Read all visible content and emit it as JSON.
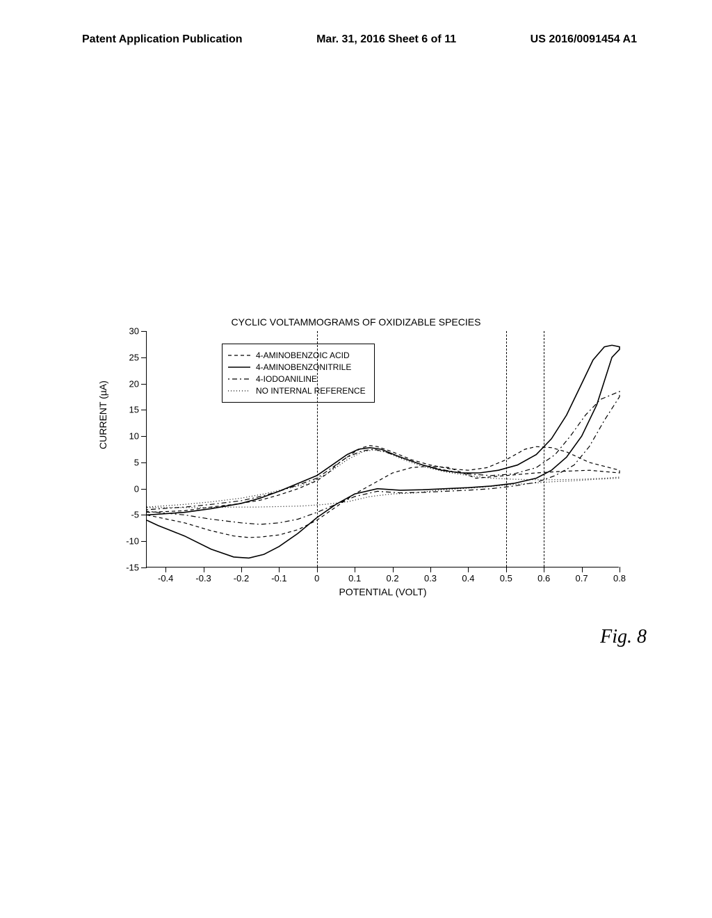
{
  "header": {
    "left": "Patent Application Publication",
    "center": "Mar. 31, 2016  Sheet 6 of 11",
    "right": "US 2016/0091454 A1"
  },
  "chart": {
    "type": "line",
    "title": "CYCLIC VOLTAMMOGRAMS OF OXIDIZABLE SPECIES",
    "xlabel": "POTENTIAL (VOLT)",
    "ylabel": "CURRENT (µA)",
    "xlim": [
      -0.45,
      0.8
    ],
    "ylim": [
      -15,
      30
    ],
    "xticks": [
      -0.4,
      -0.3,
      -0.2,
      -0.1,
      0,
      0.1,
      0.2,
      0.3,
      0.4,
      0.5,
      0.6,
      0.7,
      0.8
    ],
    "yticks": [
      -15,
      -10,
      -5,
      0,
      5,
      10,
      15,
      20,
      25,
      30
    ],
    "axis_color": "#000000",
    "background_color": "#ffffff",
    "label_fontsize": 14,
    "tick_fontsize": 13,
    "title_fontsize": 14,
    "vertical_guides": [
      0.0,
      0.5,
      0.6
    ],
    "legend": {
      "items": [
        {
          "label": "4-AMINOBENZOIC ACID",
          "dash": "5,4",
          "weight": 1.2,
          "color": "#000000"
        },
        {
          "label": "4-AMINOBENZONITRILE",
          "dash": "none",
          "weight": 1.6,
          "color": "#000000"
        },
        {
          "label": "4-IODOANILINE",
          "dash": "2,4,7,4",
          "weight": 1.2,
          "color": "#000000"
        },
        {
          "label": "NO INTERNAL REFERENCE",
          "dash": "1,3",
          "weight": 1.2,
          "color": "#000000"
        }
      ]
    },
    "series": [
      {
        "name": "4-AMINOBENZOIC ACID",
        "dash": "5,4",
        "weight": 1.2,
        "color": "#000000",
        "points": [
          [
            -0.45,
            -4.5
          ],
          [
            -0.35,
            -4.2
          ],
          [
            -0.28,
            -3.5
          ],
          [
            -0.22,
            -3.0
          ],
          [
            -0.15,
            -2.2
          ],
          [
            -0.1,
            -1.2
          ],
          [
            -0.05,
            0.0
          ],
          [
            0.0,
            1.5
          ],
          [
            0.03,
            3.0
          ],
          [
            0.06,
            5.0
          ],
          [
            0.1,
            7.0
          ],
          [
            0.12,
            7.8
          ],
          [
            0.14,
            8.2
          ],
          [
            0.16,
            8.0
          ],
          [
            0.2,
            7.0
          ],
          [
            0.25,
            5.5
          ],
          [
            0.3,
            4.5
          ],
          [
            0.35,
            3.8
          ],
          [
            0.4,
            3.5
          ],
          [
            0.45,
            4.0
          ],
          [
            0.5,
            5.5
          ],
          [
            0.55,
            7.5
          ],
          [
            0.58,
            8.0
          ],
          [
            0.62,
            7.8
          ],
          [
            0.66,
            7.0
          ],
          [
            0.72,
            5.0
          ],
          [
            0.8,
            3.5
          ],
          [
            0.8,
            3.0
          ],
          [
            0.72,
            3.5
          ],
          [
            0.65,
            3.3
          ],
          [
            0.58,
            3.0
          ],
          [
            0.5,
            2.5
          ],
          [
            0.42,
            2.0
          ],
          [
            0.35,
            4.0
          ],
          [
            0.3,
            4.3
          ],
          [
            0.25,
            4.0
          ],
          [
            0.2,
            3.0
          ],
          [
            0.15,
            1.0
          ],
          [
            0.1,
            -1.0
          ],
          [
            0.05,
            -3.5
          ],
          [
            0.0,
            -6.0
          ],
          [
            -0.05,
            -7.8
          ],
          [
            -0.1,
            -8.8
          ],
          [
            -0.15,
            -9.2
          ],
          [
            -0.18,
            -9.3
          ],
          [
            -0.22,
            -9.0
          ],
          [
            -0.28,
            -8.0
          ],
          [
            -0.35,
            -6.5
          ],
          [
            -0.45,
            -5.0
          ]
        ]
      },
      {
        "name": "4-AMINOBENZONITRILE",
        "dash": "none",
        "weight": 1.6,
        "color": "#000000",
        "points": [
          [
            -0.45,
            -5.0
          ],
          [
            -0.35,
            -4.5
          ],
          [
            -0.28,
            -3.8
          ],
          [
            -0.2,
            -2.8
          ],
          [
            -0.15,
            -1.8
          ],
          [
            -0.1,
            -0.5
          ],
          [
            -0.05,
            1.0
          ],
          [
            0.0,
            2.5
          ],
          [
            0.04,
            4.5
          ],
          [
            0.08,
            6.5
          ],
          [
            0.11,
            7.5
          ],
          [
            0.14,
            7.8
          ],
          [
            0.17,
            7.5
          ],
          [
            0.22,
            6.0
          ],
          [
            0.28,
            4.5
          ],
          [
            0.33,
            3.5
          ],
          [
            0.38,
            3.0
          ],
          [
            0.43,
            3.0
          ],
          [
            0.48,
            3.5
          ],
          [
            0.53,
            4.5
          ],
          [
            0.58,
            6.5
          ],
          [
            0.62,
            9.5
          ],
          [
            0.66,
            14.0
          ],
          [
            0.7,
            20.0
          ],
          [
            0.73,
            24.5
          ],
          [
            0.76,
            27.0
          ],
          [
            0.78,
            27.3
          ],
          [
            0.8,
            27.0
          ],
          [
            0.8,
            26.5
          ],
          [
            0.78,
            25.0
          ],
          [
            0.74,
            16.0
          ],
          [
            0.7,
            10.0
          ],
          [
            0.66,
            6.0
          ],
          [
            0.62,
            3.5
          ],
          [
            0.58,
            2.0
          ],
          [
            0.52,
            1.0
          ],
          [
            0.46,
            0.5
          ],
          [
            0.4,
            0.2
          ],
          [
            0.34,
            0.0
          ],
          [
            0.28,
            -0.2
          ],
          [
            0.22,
            -0.3
          ],
          [
            0.16,
            0.0
          ],
          [
            0.1,
            -1.0
          ],
          [
            0.05,
            -3.0
          ],
          [
            0.0,
            -5.5
          ],
          [
            -0.05,
            -8.5
          ],
          [
            -0.1,
            -11.0
          ],
          [
            -0.14,
            -12.5
          ],
          [
            -0.18,
            -13.2
          ],
          [
            -0.22,
            -13.0
          ],
          [
            -0.28,
            -11.5
          ],
          [
            -0.35,
            -9.0
          ],
          [
            -0.42,
            -7.0
          ],
          [
            -0.45,
            -6.0
          ]
        ]
      },
      {
        "name": "4-IODOANILINE",
        "dash": "2,4,7,4",
        "weight": 1.2,
        "color": "#000000",
        "points": [
          [
            -0.45,
            -4.0
          ],
          [
            -0.35,
            -3.5
          ],
          [
            -0.28,
            -3.0
          ],
          [
            -0.2,
            -2.3
          ],
          [
            -0.15,
            -1.5
          ],
          [
            -0.1,
            -0.5
          ],
          [
            -0.05,
            0.7
          ],
          [
            0.0,
            2.0
          ],
          [
            0.04,
            4.0
          ],
          [
            0.08,
            6.0
          ],
          [
            0.12,
            7.2
          ],
          [
            0.15,
            7.5
          ],
          [
            0.18,
            7.0
          ],
          [
            0.23,
            5.8
          ],
          [
            0.28,
            4.5
          ],
          [
            0.34,
            3.5
          ],
          [
            0.4,
            2.8
          ],
          [
            0.46,
            2.5
          ],
          [
            0.52,
            2.8
          ],
          [
            0.58,
            4.0
          ],
          [
            0.63,
            6.5
          ],
          [
            0.67,
            10.0
          ],
          [
            0.71,
            14.0
          ],
          [
            0.75,
            17.0
          ],
          [
            0.8,
            18.5
          ],
          [
            0.8,
            17.5
          ],
          [
            0.76,
            13.0
          ],
          [
            0.72,
            8.0
          ],
          [
            0.68,
            4.5
          ],
          [
            0.63,
            2.5
          ],
          [
            0.58,
            1.2
          ],
          [
            0.52,
            0.5
          ],
          [
            0.46,
            0.0
          ],
          [
            0.4,
            -0.3
          ],
          [
            0.34,
            -0.5
          ],
          [
            0.28,
            -0.7
          ],
          [
            0.22,
            -0.8
          ],
          [
            0.16,
            -0.5
          ],
          [
            0.1,
            -1.5
          ],
          [
            0.05,
            -3.0
          ],
          [
            0.0,
            -4.5
          ],
          [
            -0.05,
            -5.8
          ],
          [
            -0.1,
            -6.5
          ],
          [
            -0.15,
            -6.8
          ],
          [
            -0.2,
            -6.5
          ],
          [
            -0.28,
            -5.8
          ],
          [
            -0.35,
            -5.0
          ],
          [
            -0.45,
            -4.3
          ]
        ]
      },
      {
        "name": "NO INTERNAL REFERENCE",
        "dash": "1,3",
        "weight": 1.2,
        "color": "#000000",
        "points": [
          [
            -0.45,
            -3.5
          ],
          [
            -0.35,
            -3.0
          ],
          [
            -0.28,
            -2.5
          ],
          [
            -0.2,
            -1.8
          ],
          [
            -0.14,
            -1.0
          ],
          [
            -0.08,
            0.0
          ],
          [
            -0.02,
            1.0
          ],
          [
            0.03,
            3.0
          ],
          [
            0.08,
            5.5
          ],
          [
            0.12,
            7.0
          ],
          [
            0.15,
            7.4
          ],
          [
            0.18,
            7.0
          ],
          [
            0.23,
            5.5
          ],
          [
            0.28,
            4.2
          ],
          [
            0.34,
            3.2
          ],
          [
            0.4,
            2.5
          ],
          [
            0.46,
            2.0
          ],
          [
            0.52,
            1.8
          ],
          [
            0.58,
            1.7
          ],
          [
            0.64,
            1.7
          ],
          [
            0.7,
            1.8
          ],
          [
            0.76,
            2.0
          ],
          [
            0.8,
            2.2
          ],
          [
            0.8,
            2.0
          ],
          [
            0.74,
            1.8
          ],
          [
            0.68,
            1.5
          ],
          [
            0.62,
            1.3
          ],
          [
            0.56,
            1.0
          ],
          [
            0.5,
            0.7
          ],
          [
            0.44,
            0.3
          ],
          [
            0.38,
            0.0
          ],
          [
            0.32,
            -0.3
          ],
          [
            0.26,
            -0.8
          ],
          [
            0.2,
            -1.0
          ],
          [
            0.14,
            -1.5
          ],
          [
            0.08,
            -2.5
          ],
          [
            0.02,
            -3.0
          ],
          [
            -0.04,
            -3.3
          ],
          [
            -0.1,
            -3.4
          ],
          [
            -0.16,
            -3.5
          ],
          [
            -0.22,
            -3.5
          ],
          [
            -0.3,
            -3.6
          ],
          [
            -0.38,
            -3.6
          ],
          [
            -0.45,
            -3.6
          ]
        ]
      }
    ]
  },
  "figure_label": "Fig. 8"
}
